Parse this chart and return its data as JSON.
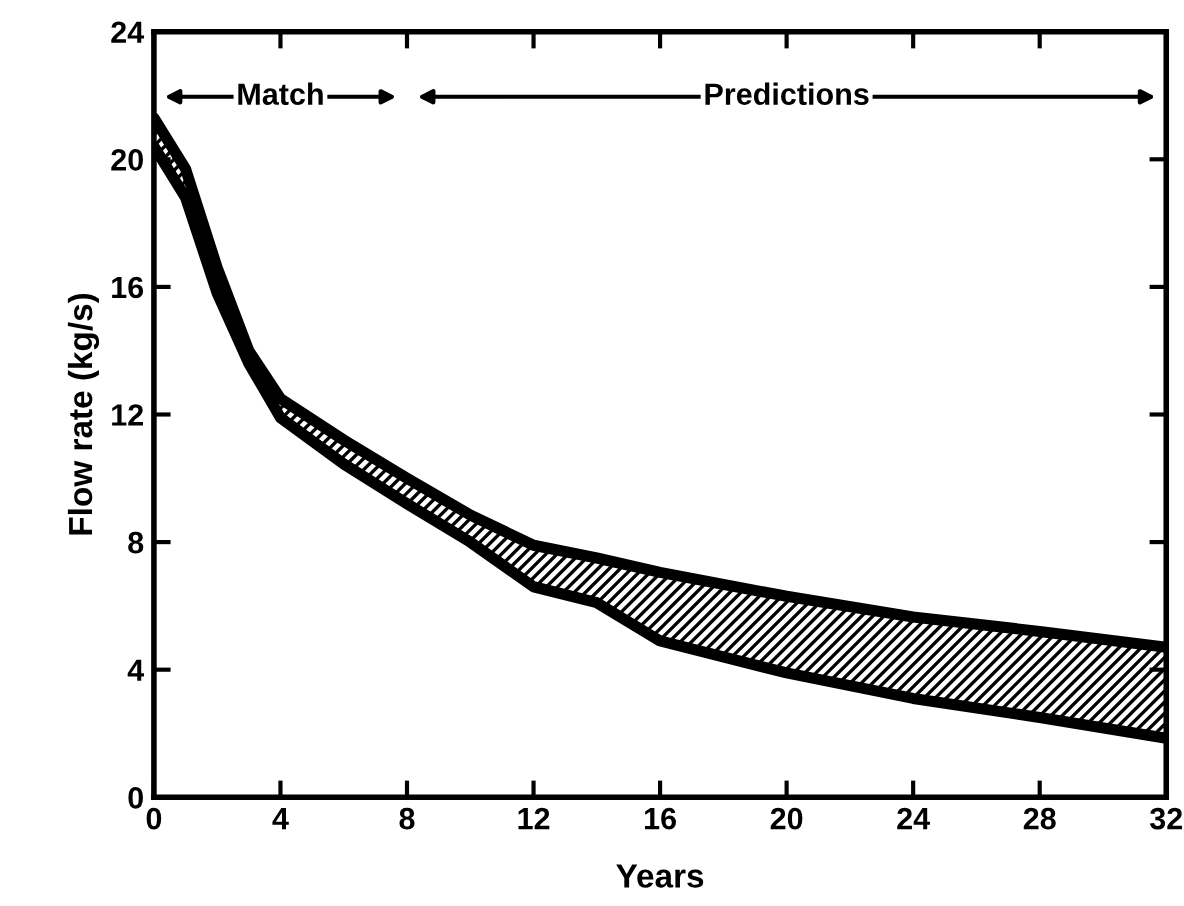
{
  "chart_data": {
    "type": "line",
    "xlabel": "Years",
    "ylabel": "Flow rate (kg/s)",
    "xlim": [
      0,
      32
    ],
    "xticks": [
      0,
      4,
      8,
      12,
      16,
      20,
      24,
      28,
      32
    ],
    "ylim": [
      0,
      24
    ],
    "yticks": [
      0,
      4,
      8,
      12,
      16,
      20,
      24
    ],
    "grid": false,
    "marker": "none",
    "line_style": "solid",
    "series": [
      {
        "color": "#000000",
        "x": [
          0,
          1,
          2,
          3,
          4,
          6,
          8,
          10,
          12,
          14,
          16,
          20,
          24,
          28,
          32
        ],
        "values": [
          21.3,
          19.7,
          16.6,
          14.0,
          12.5,
          11.2,
          10.0,
          8.85,
          7.9,
          7.5,
          7.05,
          6.3,
          5.65,
          5.2,
          4.7
        ],
        "lower": [
          20.4,
          18.8,
          15.8,
          13.6,
          11.9,
          10.45,
          9.2,
          8.0,
          6.6,
          6.1,
          4.9,
          3.9,
          3.1,
          2.5,
          1.85
        ],
        "upper": [
          21.3,
          19.7,
          16.6,
          14.0,
          12.5,
          11.2,
          10.0,
          8.85,
          7.9,
          7.5,
          7.05,
          6.3,
          5.65,
          5.2,
          4.7
        ]
      },
      {
        "color": "#000000",
        "x": [
          0,
          1,
          2,
          3,
          4,
          6,
          8,
          10,
          12,
          14,
          16,
          20,
          24,
          28,
          32
        ],
        "values": [
          20.4,
          18.8,
          15.8,
          13.6,
          11.9,
          10.45,
          9.2,
          8.0,
          6.6,
          6.1,
          4.9,
          3.9,
          3.1,
          2.5,
          1.85
        ]
      }
    ],
    "annotations": [
      "Match",
      "Predictions"
    ]
  }
}
